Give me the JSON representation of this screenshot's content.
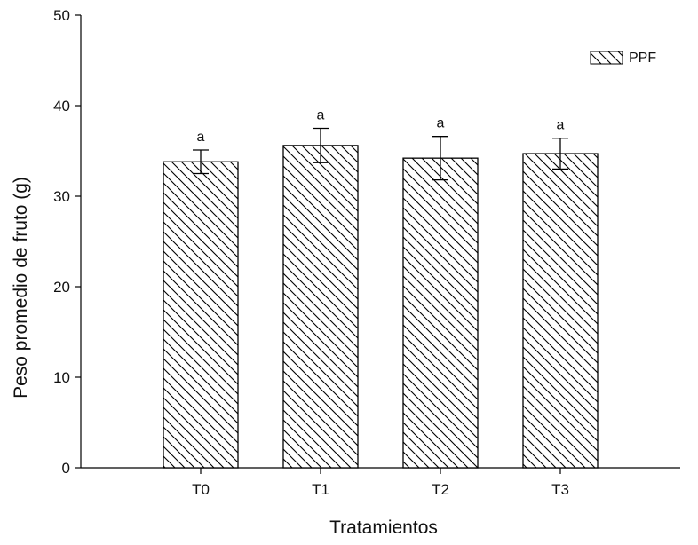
{
  "chart_data": {
    "type": "bar",
    "title": "",
    "xlabel": "Tratamientos",
    "ylabel": "Peso promedio de fruto (g)",
    "categories": [
      "T0",
      "T1",
      "T2",
      "T3"
    ],
    "series": [
      {
        "name": "PPF",
        "values": [
          33.8,
          35.6,
          34.2,
          34.7
        ],
        "errors": [
          1.3,
          1.9,
          2.4,
          1.7
        ],
        "significance": [
          "a",
          "a",
          "a",
          "a"
        ]
      }
    ],
    "ylim": [
      0,
      50
    ],
    "yticks": [
      0,
      10,
      20,
      30,
      40,
      50
    ],
    "ytick_labels": [
      "0",
      "10",
      "20",
      "30",
      "40",
      "50"
    ],
    "grid": false,
    "legend_position": "top-right",
    "bar_fill": "diagonal-hatch",
    "colors": {
      "bar_stroke": "#000000",
      "hatch": "#000000",
      "background": "#ffffff"
    }
  }
}
